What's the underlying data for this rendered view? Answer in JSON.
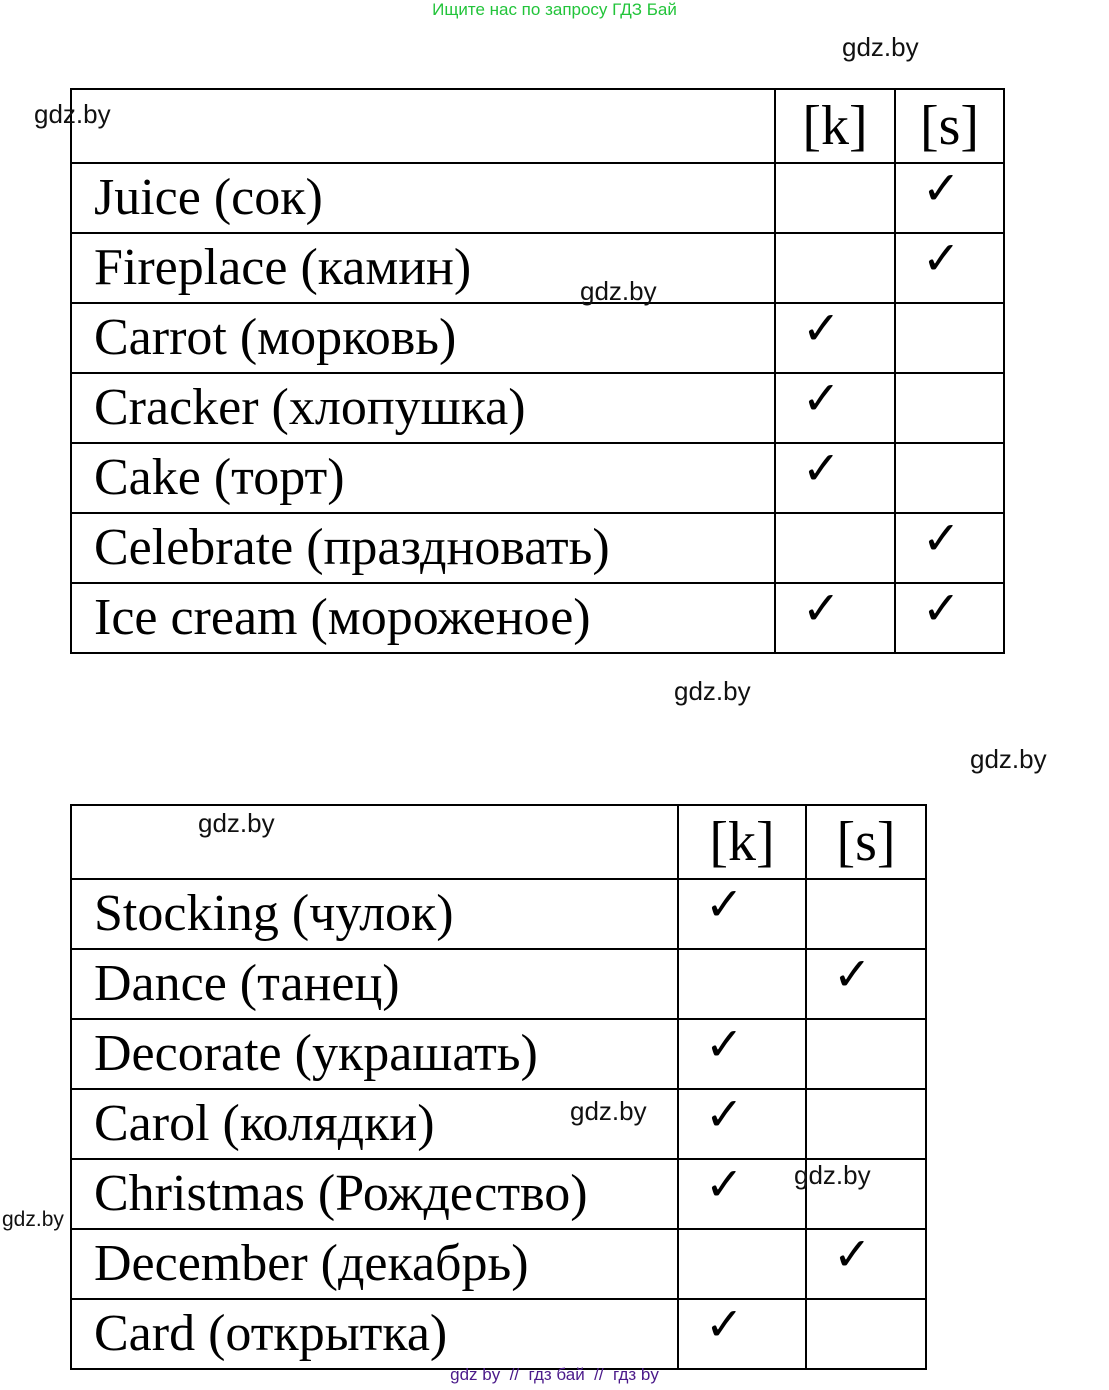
{
  "top_note": "Ищите нас по запросу ГДЗ Бай",
  "footer": "gdz by  //  гдз бай  //  гдз by",
  "watermark": "gdz.by",
  "check_icon": "checkmark-icon",
  "tables": [
    {
      "headers": [
        "",
        "[k]",
        "[s]"
      ],
      "rows": [
        {
          "word": "Juice (сок)",
          "k": false,
          "s": true
        },
        {
          "word": "Fireplace (камин)",
          "k": false,
          "s": true
        },
        {
          "word": "Carrot (морковь)",
          "k": true,
          "s": false
        },
        {
          "word": "Cracker (хлопушка)",
          "k": true,
          "s": false
        },
        {
          "word": "Cake (торт)",
          "k": true,
          "s": false
        },
        {
          "word": "Celebrate (праздновать)",
          "k": false,
          "s": true
        },
        {
          "word": "Ice cream (мороженое)",
          "k": true,
          "s": true
        }
      ]
    },
    {
      "headers": [
        "",
        "[k]",
        "[s]"
      ],
      "rows": [
        {
          "word": "Stocking (чулок)",
          "k": true,
          "s": false
        },
        {
          "word": "Dance (танец)",
          "k": false,
          "s": true
        },
        {
          "word": "Decorate (украшать)",
          "k": true,
          "s": false
        },
        {
          "word": "Carol (колядки)",
          "k": true,
          "s": false
        },
        {
          "word": "Christmas (Рождество)",
          "k": true,
          "s": false
        },
        {
          "word": "December (декабрь)",
          "k": false,
          "s": true
        },
        {
          "word": "Card (открытка)",
          "k": true,
          "s": false
        }
      ]
    }
  ]
}
